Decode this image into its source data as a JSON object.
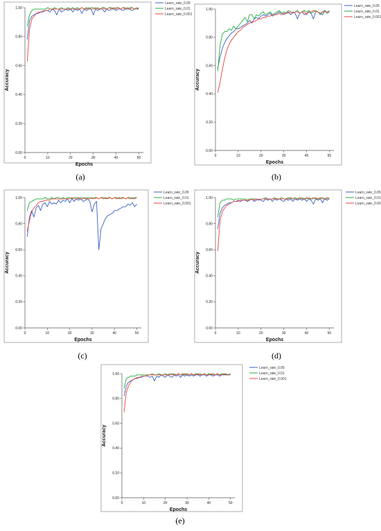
{
  "colors": {
    "Learn_rate_0.05": "#3b5fc0",
    "Learn_rate_0.01": "#1fae3c",
    "Learn_rate_0.001": "#e8403a"
  },
  "chart_data": [
    {
      "caption": "(a)",
      "type": "line",
      "xlabel": "Epochs",
      "ylabel": "Accuracy",
      "xlim": [
        0,
        52
      ],
      "ylim": [
        0,
        1.0
      ],
      "xticks": [
        0,
        10,
        20,
        30,
        40,
        50
      ],
      "xtick_labels": [
        "0",
        "10",
        "20",
        "30",
        "40",
        "50"
      ],
      "yticks": [
        0,
        0.2,
        0.4,
        0.6,
        0.8,
        1.0
      ],
      "ytick_labels": [
        "0.00",
        "0.20",
        "0.40",
        "0.60",
        "0.80",
        "1.00"
      ],
      "legend_position": "top-right",
      "series": [
        {
          "name": "Learn_rate_0.05",
          "values": [
            0.78,
            0.91,
            0.94,
            0.95,
            0.96,
            0.96,
            0.97,
            0.97,
            0.98,
            0.98,
            0.97,
            0.99,
            0.98,
            0.95,
            0.99,
            0.97,
            0.98,
            0.99,
            0.98,
            0.99,
            0.97,
            0.99,
            0.98,
            0.99,
            0.96,
            0.99,
            0.98,
            0.99,
            0.99,
            0.95,
            0.99,
            0.98,
            0.99,
            0.99,
            0.97,
            0.99,
            0.98,
            0.99,
            0.99,
            0.98,
            0.99,
            0.99,
            0.98,
            0.99,
            0.99,
            0.99,
            0.98,
            0.99,
            0.99,
            0.99
          ]
        },
        {
          "name": "Learn_rate_0.01",
          "values": [
            0.87,
            0.95,
            0.98,
            0.99,
            0.99,
            0.99,
            0.99,
            0.99,
            0.99,
            1.0,
            0.99,
            0.99,
            1.0,
            0.99,
            0.99,
            1.0,
            0.99,
            0.99,
            1.0,
            0.99,
            1.0,
            0.99,
            1.0,
            0.99,
            1.0,
            0.99,
            1.0,
            0.99,
            1.0,
            1.0,
            0.99,
            1.0,
            0.99,
            1.0,
            1.0,
            0.99,
            1.0,
            1.0,
            0.99,
            1.0,
            1.0,
            0.99,
            1.0,
            1.0,
            0.99,
            1.0,
            1.0,
            0.99,
            0.99,
            1.0
          ]
        },
        {
          "name": "Learn_rate_0.001",
          "values": [
            0.63,
            0.85,
            0.92,
            0.94,
            0.96,
            0.97,
            0.97,
            0.98,
            0.98,
            0.98,
            0.99,
            0.99,
            0.99,
            0.99,
            0.99,
            0.99,
            0.99,
            0.99,
            0.99,
            0.99,
            0.99,
            0.99,
            0.99,
            0.99,
            1.0,
            0.99,
            0.99,
            1.0,
            0.99,
            0.99,
            1.0,
            0.99,
            0.99,
            1.0,
            0.99,
            0.99,
            1.0,
            0.99,
            1.0,
            0.99,
            1.0,
            0.99,
            1.0,
            0.99,
            1.0,
            0.99,
            1.0,
            0.99,
            1.0,
            0.99
          ]
        }
      ]
    },
    {
      "caption": "(b)",
      "type": "line",
      "xlabel": "Epochs",
      "ylabel": "Accuracy",
      "xlim": [
        0,
        52
      ],
      "ylim": [
        0,
        1.0
      ],
      "xticks": [
        0,
        10,
        20,
        30,
        40,
        50
      ],
      "xtick_labels": [
        "0",
        "10",
        "20",
        "30",
        "40",
        "50"
      ],
      "yticks": [
        0,
        0.2,
        0.4,
        0.6,
        0.8,
        1.0
      ],
      "ytick_labels": [
        "0.00",
        "0.20",
        "0.40",
        "0.60",
        "0.80",
        "1.00"
      ],
      "legend_position": "outside-top-right",
      "series": [
        {
          "name": "Learn_rate_0.05",
          "values": [
            0.58,
            0.66,
            0.72,
            0.76,
            0.79,
            0.81,
            0.83,
            0.84,
            0.86,
            0.86,
            0.87,
            0.88,
            0.89,
            0.9,
            0.92,
            0.9,
            0.93,
            0.94,
            0.93,
            0.95,
            0.96,
            0.95,
            0.96,
            0.97,
            0.95,
            0.96,
            0.97,
            0.98,
            0.97,
            0.96,
            0.97,
            0.98,
            0.96,
            0.98,
            0.97,
            0.93,
            0.97,
            0.98,
            0.96,
            0.97,
            0.98,
            0.97,
            0.93,
            0.98,
            0.98,
            0.97,
            0.96,
            0.99,
            0.97,
            0.98
          ]
        },
        {
          "name": "Learn_rate_0.01",
          "values": [
            0.56,
            0.74,
            0.82,
            0.84,
            0.84,
            0.86,
            0.85,
            0.88,
            0.86,
            0.88,
            0.9,
            0.92,
            0.94,
            0.91,
            0.96,
            0.96,
            0.93,
            0.96,
            0.95,
            0.97,
            0.98,
            0.96,
            0.97,
            0.98,
            0.96,
            0.97,
            0.98,
            0.99,
            0.97,
            0.98,
            0.97,
            0.99,
            0.98,
            0.97,
            0.98,
            0.99,
            0.97,
            0.98,
            0.99,
            0.98,
            0.99,
            0.97,
            0.98,
            0.99,
            0.98,
            0.96,
            0.98,
            0.99,
            0.97,
            0.99
          ]
        },
        {
          "name": "Learn_rate_0.001",
          "values": [
            0.41,
            0.48,
            0.57,
            0.65,
            0.71,
            0.75,
            0.78,
            0.8,
            0.82,
            0.84,
            0.85,
            0.87,
            0.88,
            0.89,
            0.9,
            0.91,
            0.91,
            0.92,
            0.93,
            0.93,
            0.94,
            0.94,
            0.95,
            0.95,
            0.96,
            0.96,
            0.96,
            0.97,
            0.96,
            0.97,
            0.97,
            0.97,
            0.98,
            0.97,
            0.98,
            0.98,
            0.97,
            0.98,
            0.98,
            0.96,
            0.98,
            0.98,
            0.99,
            0.98,
            0.98,
            0.97,
            0.98,
            0.98,
            0.98,
            0.98
          ]
        }
      ]
    },
    {
      "caption": "(c)",
      "type": "line",
      "xlabel": "Epochs",
      "ylabel": "Accuracy",
      "xlim": [
        0,
        52
      ],
      "ylim": [
        0,
        1.0
      ],
      "xticks": [
        0,
        10,
        20,
        30,
        40,
        50
      ],
      "xtick_labels": [
        "0",
        "10",
        "20",
        "30",
        "40",
        "50"
      ],
      "yticks": [
        0,
        0.2,
        0.4,
        0.6,
        0.8,
        1.0
      ],
      "ytick_labels": [
        "0.00",
        "0.20",
        "0.40",
        "0.60",
        "0.80",
        "1.00"
      ],
      "legend_position": "outside-top-right",
      "series": [
        {
          "name": "Learn_rate_0.05",
          "values": [
            0.7,
            0.85,
            0.9,
            0.85,
            0.92,
            0.94,
            0.9,
            0.95,
            0.96,
            0.93,
            0.97,
            0.95,
            0.96,
            0.95,
            0.98,
            0.96,
            0.98,
            0.97,
            0.99,
            0.96,
            0.99,
            0.97,
            0.99,
            0.98,
            0.99,
            0.97,
            0.98,
            0.99,
            0.97,
            0.89,
            0.95,
            0.97,
            0.6,
            0.76,
            0.8,
            0.84,
            0.86,
            0.87,
            0.88,
            0.9,
            0.9,
            0.91,
            0.92,
            0.93,
            0.93,
            0.95,
            0.94,
            0.96,
            0.93,
            0.95
          ]
        },
        {
          "name": "Learn_rate_0.01",
          "values": [
            0.9,
            0.96,
            0.97,
            0.98,
            0.99,
            0.99,
            0.99,
            0.99,
            1.0,
            0.99,
            0.99,
            1.0,
            0.99,
            1.0,
            1.0,
            0.99,
            1.0,
            0.99,
            1.0,
            1.0,
            0.99,
            1.0,
            1.0,
            0.99,
            1.0,
            1.0,
            0.99,
            1.0,
            1.0,
            0.99,
            1.0,
            1.0,
            0.99,
            1.0,
            1.0,
            0.99,
            1.0,
            1.0,
            0.99,
            1.0,
            1.0,
            0.99,
            1.0,
            1.0,
            0.99,
            1.0,
            1.0,
            0.99,
            1.0,
            1.0
          ]
        },
        {
          "name": "Learn_rate_0.001",
          "values": [
            0.74,
            0.82,
            0.89,
            0.92,
            0.94,
            0.96,
            0.97,
            0.97,
            0.98,
            0.98,
            0.98,
            0.99,
            0.99,
            0.99,
            0.99,
            0.99,
            0.99,
            0.99,
            0.99,
            0.99,
            1.0,
            0.99,
            0.99,
            1.0,
            0.99,
            0.99,
            1.0,
            0.99,
            0.99,
            1.0,
            0.99,
            1.0,
            0.99,
            1.0,
            0.99,
            1.0,
            0.99,
            1.0,
            0.99,
            1.0,
            0.99,
            1.0,
            0.99,
            1.0,
            0.99,
            1.0,
            0.99,
            1.0,
            0.99,
            1.0
          ]
        }
      ]
    },
    {
      "caption": "(d)",
      "type": "line",
      "xlabel": "Epochs",
      "ylabel": "Accuracy",
      "xlim": [
        0,
        52
      ],
      "ylim": [
        0,
        1.0
      ],
      "xticks": [
        0,
        10,
        20,
        30,
        40,
        50
      ],
      "xtick_labels": [
        "0",
        "10",
        "20",
        "30",
        "40",
        "50"
      ],
      "yticks": [
        0,
        0.2,
        0.4,
        0.6,
        0.8,
        1.0
      ],
      "ytick_labels": [
        "0.00",
        "0.20",
        "0.40",
        "0.60",
        "0.80",
        "1.00"
      ],
      "legend_position": "outside-top-right",
      "series": [
        {
          "name": "Learn_rate_0.05",
          "values": [
            0.76,
            0.88,
            0.92,
            0.94,
            0.95,
            0.96,
            0.96,
            0.97,
            0.97,
            0.98,
            0.97,
            0.98,
            0.98,
            0.97,
            0.98,
            0.99,
            0.97,
            0.98,
            0.99,
            0.98,
            0.97,
            0.99,
            0.98,
            0.99,
            0.97,
            0.99,
            0.98,
            0.99,
            0.98,
            0.97,
            0.99,
            0.98,
            0.99,
            0.97,
            0.99,
            0.98,
            0.99,
            0.98,
            0.99,
            0.97,
            0.99,
            0.98,
            0.95,
            0.99,
            0.98,
            0.99,
            0.96,
            0.99,
            0.98,
            0.99
          ]
        },
        {
          "name": "Learn_rate_0.01",
          "values": [
            0.85,
            0.96,
            0.98,
            0.98,
            0.99,
            0.99,
            0.99,
            0.98,
            0.99,
            0.99,
            0.99,
            0.99,
            0.99,
            0.98,
            0.99,
            0.99,
            0.99,
            0.99,
            0.98,
            0.99,
            0.99,
            1.0,
            0.99,
            0.99,
            0.99,
            1.0,
            0.99,
            0.99,
            1.0,
            0.99,
            0.99,
            1.0,
            0.99,
            0.99,
            1.0,
            0.99,
            0.99,
            1.0,
            0.99,
            0.99,
            1.0,
            0.99,
            0.99,
            1.0,
            0.99,
            0.99,
            1.0,
            0.99,
            0.99,
            1.0
          ]
        },
        {
          "name": "Learn_rate_0.001",
          "values": [
            0.59,
            0.82,
            0.89,
            0.92,
            0.94,
            0.95,
            0.96,
            0.97,
            0.97,
            0.97,
            0.98,
            0.98,
            0.98,
            0.98,
            0.98,
            0.99,
            0.98,
            0.99,
            0.98,
            0.99,
            0.99,
            0.99,
            0.99,
            0.99,
            0.99,
            0.99,
            0.99,
            0.99,
            0.99,
            0.99,
            0.99,
            0.99,
            1.0,
            0.99,
            0.99,
            0.99,
            1.0,
            0.99,
            0.99,
            1.0,
            0.99,
            0.99,
            1.0,
            0.99,
            0.99,
            1.0,
            0.99,
            0.99,
            1.0,
            0.99
          ]
        }
      ]
    },
    {
      "caption": "(e)",
      "type": "line",
      "xlabel": "Epochs",
      "ylabel": "Accuracy",
      "xlim": [
        0,
        52
      ],
      "ylim": [
        0,
        1.0
      ],
      "xticks": [
        0,
        10,
        20,
        30,
        40,
        50
      ],
      "xtick_labels": [
        "0",
        "10",
        "20",
        "30",
        "40",
        "50"
      ],
      "yticks": [
        0,
        0.2,
        0.4,
        0.6,
        0.8,
        1.0
      ],
      "ytick_labels": [
        "0.00",
        "0.20",
        "0.40",
        "0.60",
        "0.80",
        "1.00"
      ],
      "legend_position": "outside-top-right",
      "series": [
        {
          "name": "Learn_rate_0.05",
          "values": [
            0.82,
            0.9,
            0.93,
            0.94,
            0.95,
            0.96,
            0.96,
            0.97,
            0.97,
            0.98,
            0.98,
            0.98,
            0.97,
            0.98,
            0.94,
            0.98,
            0.97,
            0.99,
            0.98,
            0.97,
            0.99,
            0.98,
            0.97,
            0.99,
            0.98,
            0.99,
            0.97,
            0.99,
            0.98,
            0.99,
            0.98,
            0.99,
            0.98,
            0.99,
            0.99,
            0.98,
            0.99,
            0.99,
            0.98,
            0.99,
            0.99,
            0.98,
            0.99,
            0.99,
            0.98,
            0.99,
            0.99,
            0.99,
            0.99,
            0.99
          ]
        },
        {
          "name": "Learn_rate_0.01",
          "values": [
            0.88,
            0.96,
            0.97,
            0.98,
            0.98,
            0.98,
            0.99,
            0.99,
            0.99,
            0.99,
            0.99,
            0.99,
            0.99,
            1.0,
            0.99,
            0.99,
            1.0,
            0.99,
            0.99,
            1.0,
            0.99,
            1.0,
            0.99,
            1.0,
            0.99,
            1.0,
            0.99,
            1.0,
            0.99,
            1.0,
            0.99,
            1.0,
            0.99,
            1.0,
            0.99,
            1.0,
            0.99,
            1.0,
            0.99,
            1.0,
            0.99,
            1.0,
            0.99,
            1.0,
            0.99,
            1.0,
            0.99,
            1.0,
            0.99,
            1.0
          ]
        },
        {
          "name": "Learn_rate_0.001",
          "values": [
            0.69,
            0.85,
            0.9,
            0.93,
            0.95,
            0.96,
            0.97,
            0.97,
            0.98,
            0.98,
            0.98,
            0.99,
            0.99,
            0.99,
            0.99,
            0.99,
            0.99,
            0.99,
            0.99,
            0.99,
            0.99,
            0.99,
            1.0,
            0.99,
            0.99,
            1.0,
            0.99,
            0.99,
            1.0,
            0.99,
            0.99,
            1.0,
            0.99,
            0.99,
            1.0,
            0.99,
            0.99,
            1.0,
            0.99,
            0.99,
            1.0,
            0.99,
            0.99,
            1.0,
            0.99,
            0.99,
            1.0,
            0.99,
            0.99,
            1.0
          ]
        }
      ]
    }
  ]
}
